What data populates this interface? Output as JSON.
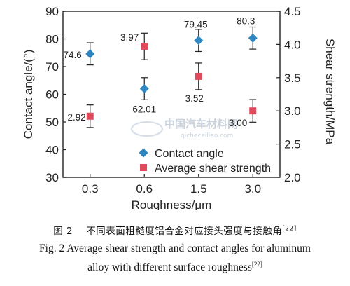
{
  "chart_data": {
    "type": "scatter",
    "categories": [
      "0.3",
      "0.6",
      "1.5",
      "3.0"
    ],
    "xlabel": "Roughness/μm",
    "y_left": {
      "label": "Contact angle/(°)",
      "range": [
        30,
        90
      ],
      "ticks": [
        "30",
        "40",
        "50",
        "60",
        "70",
        "80",
        "90"
      ]
    },
    "y_right": {
      "label": "Shear strength/MPa",
      "range": [
        2.0,
        4.5
      ],
      "ticks": [
        "2.0",
        "2.5",
        "3.0",
        "3.5",
        "4.0",
        "4.5"
      ]
    },
    "series": [
      {
        "name": "Contact angle",
        "axis": "left",
        "marker": "diamond",
        "color": "#2e86c1",
        "values": [
          74.6,
          62.01,
          79.45,
          80.3
        ],
        "error": [
          4.0,
          4.0,
          4.0,
          4.0
        ],
        "data_labels": [
          "74.6",
          "62.01",
          "79.45",
          "80.3"
        ]
      },
      {
        "name": "Average shear strength",
        "axis": "right",
        "marker": "square",
        "color": "#e04a5c",
        "values": [
          2.92,
          3.97,
          3.52,
          3.0
        ],
        "error": [
          0.17,
          0.2,
          0.2,
          0.17
        ],
        "data_labels": [
          "2.92",
          "3.97",
          "3.52",
          "3.00"
        ]
      }
    ],
    "legend_position": "bottom-center"
  },
  "watermark": {
    "text_cn": "中国汽车材料网",
    "text_url": "qichecailiao.com"
  },
  "caption": {
    "cn_prefix": "图 2",
    "cn_text": "不同表面粗糙度铝合金对应接头强度与接触角",
    "cn_ref": "[22]",
    "en_line1": "Fig. 2   Average shear strength and contact angles for aluminum",
    "en_line2": "alloy with different surface roughness",
    "en_ref": "[22]"
  }
}
